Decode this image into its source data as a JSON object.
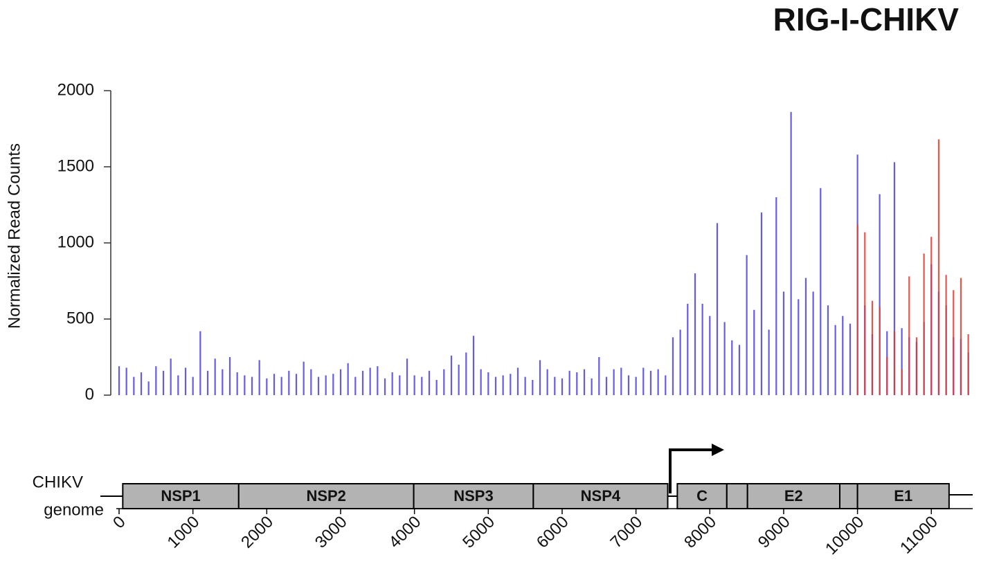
{
  "chart_data": {
    "type": "bar",
    "title": "RIG-I-CHIKV",
    "y_label": "Normalized Read Counts",
    "genome_label": [
      "CHIKV",
      "genome"
    ],
    "ylim": [
      0,
      2000
    ],
    "yticks": [
      0,
      500,
      1000,
      1500,
      2000
    ],
    "xlim": [
      0,
      11560
    ],
    "xticks": [
      0,
      1000,
      2000,
      3000,
      4000,
      5000,
      6000,
      7000,
      8000,
      9000,
      10000,
      11000
    ],
    "x": [
      0,
      100,
      200,
      300,
      400,
      500,
      600,
      700,
      800,
      900,
      1000,
      1100,
      1200,
      1300,
      1400,
      1500,
      1600,
      1700,
      1800,
      1900,
      2000,
      2100,
      2200,
      2300,
      2400,
      2500,
      2600,
      2700,
      2800,
      2900,
      3000,
      3100,
      3200,
      3300,
      3400,
      3500,
      3600,
      3700,
      3800,
      3900,
      4000,
      4100,
      4200,
      4300,
      4400,
      4500,
      4600,
      4700,
      4800,
      4900,
      5000,
      5100,
      5200,
      5300,
      5400,
      5500,
      5600,
      5700,
      5800,
      5900,
      6000,
      6100,
      6200,
      6300,
      6400,
      6500,
      6600,
      6700,
      6800,
      6900,
      7000,
      7100,
      7200,
      7300,
      7400,
      7500,
      7600,
      7700,
      7800,
      7900,
      8000,
      8100,
      8200,
      8300,
      8400,
      8500,
      8600,
      8700,
      8800,
      8900,
      9000,
      9100,
      9200,
      9300,
      9400,
      9500,
      9600,
      9700,
      9800,
      9900,
      10000,
      10100,
      10200,
      10300,
      10400,
      10500,
      10600,
      10700,
      10800,
      10900,
      11000,
      11100,
      11200,
      11300,
      11400,
      11500
    ],
    "series": [
      {
        "color": "#4a3fe0",
        "values": [
          190,
          180,
          120,
          150,
          90,
          190,
          160,
          240,
          130,
          180,
          120,
          420,
          160,
          240,
          170,
          250,
          150,
          130,
          120,
          230,
          110,
          140,
          120,
          160,
          140,
          220,
          170,
          120,
          130,
          140,
          170,
          210,
          120,
          160,
          180,
          190,
          110,
          150,
          130,
          240,
          130,
          120,
          160,
          100,
          170,
          260,
          200,
          280,
          390,
          170,
          150,
          120,
          130,
          140,
          180,
          120,
          100,
          230,
          170,
          120,
          110,
          160,
          150,
          170,
          110,
          250,
          120,
          170,
          180,
          130,
          120,
          180,
          160,
          170,
          130,
          380,
          430,
          600,
          800,
          600,
          520,
          1130,
          480,
          360,
          330,
          920,
          560,
          1200,
          430,
          1300,
          680,
          1860,
          630,
          770,
          680,
          1360,
          590,
          460,
          520,
          470,
          1580,
          590,
          400,
          1320,
          420,
          1530,
          440,
          380,
          350,
          480,
          860,
          680,
          590,
          380,
          370,
          280
        ]
      },
      {
        "color": "#e0382f",
        "values": [
          null,
          null,
          null,
          null,
          null,
          null,
          null,
          null,
          null,
          null,
          null,
          null,
          null,
          null,
          null,
          null,
          null,
          null,
          null,
          null,
          null,
          null,
          null,
          null,
          null,
          null,
          null,
          null,
          null,
          null,
          null,
          null,
          null,
          null,
          null,
          null,
          null,
          null,
          null,
          null,
          null,
          null,
          null,
          null,
          null,
          null,
          null,
          null,
          null,
          null,
          null,
          null,
          null,
          null,
          null,
          null,
          null,
          null,
          null,
          null,
          null,
          null,
          null,
          null,
          null,
          null,
          null,
          null,
          null,
          null,
          null,
          null,
          null,
          null,
          null,
          null,
          null,
          null,
          null,
          null,
          null,
          null,
          null,
          null,
          null,
          null,
          null,
          null,
          null,
          null,
          null,
          null,
          null,
          null,
          null,
          null,
          null,
          null,
          null,
          null,
          1120,
          1070,
          620,
          580,
          250,
          420,
          170,
          780,
          380,
          930,
          1040,
          1680,
          790,
          690,
          770,
          400
        ]
      }
    ],
    "genes": [
      {
        "label": "NSP1",
        "start": 50,
        "end": 1620
      },
      {
        "label": "NSP2",
        "start": 1620,
        "end": 3990
      },
      {
        "label": "NSP3",
        "start": 3990,
        "end": 5610
      },
      {
        "label": "NSP4",
        "start": 5610,
        "end": 7430
      },
      {
        "label": "C",
        "start": 7560,
        "end": 8230
      },
      {
        "label": null,
        "start": 8230,
        "end": 8510
      },
      {
        "label": "E2",
        "start": 8510,
        "end": 9760
      },
      {
        "label": null,
        "start": 9760,
        "end": 10000
      },
      {
        "label": "E1",
        "start": 10000,
        "end": 11240
      }
    ]
  }
}
